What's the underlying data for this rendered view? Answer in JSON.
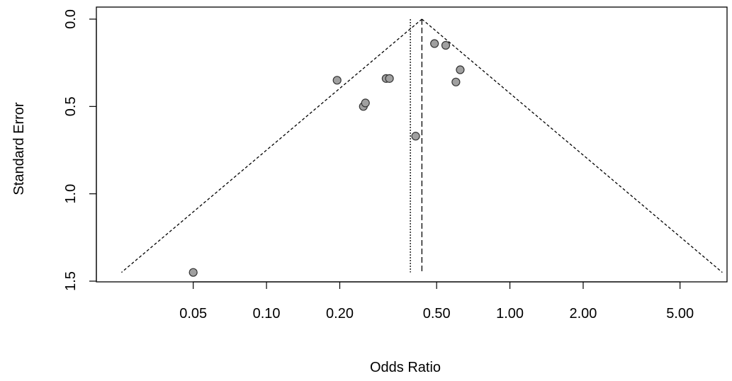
{
  "chart_data": {
    "type": "scatter",
    "title": "",
    "xlabel": "Odds Ratio",
    "ylabel": "Standard Error",
    "x_scale": "log",
    "y_reversed": true,
    "xlim": [
      0.02,
      7.8
    ],
    "ylim": [
      0.0,
      1.5
    ],
    "x_ticks": [
      {
        "value": 0.05,
        "label": "0.05"
      },
      {
        "value": 0.1,
        "label": "0.10"
      },
      {
        "value": 0.2,
        "label": "0.20"
      },
      {
        "value": 0.5,
        "label": "0.50"
      },
      {
        "value": 1.0,
        "label": "1.00"
      },
      {
        "value": 2.0,
        "label": "2.00"
      },
      {
        "value": 5.0,
        "label": "5.00"
      }
    ],
    "y_ticks": [
      {
        "value": 0.0,
        "label": "0.0"
      },
      {
        "value": 0.5,
        "label": "0.5"
      },
      {
        "value": 1.0,
        "label": "1.0"
      },
      {
        "value": 1.5,
        "label": "1.5"
      }
    ],
    "grid": false,
    "legend": "none",
    "points": [
      {
        "x": 0.05,
        "y": 1.45
      },
      {
        "x": 0.195,
        "y": 0.35
      },
      {
        "x": 0.25,
        "y": 0.5
      },
      {
        "x": 0.255,
        "y": 0.48
      },
      {
        "x": 0.31,
        "y": 0.34
      },
      {
        "x": 0.32,
        "y": 0.34
      },
      {
        "x": 0.41,
        "y": 0.67
      },
      {
        "x": 0.49,
        "y": 0.14
      },
      {
        "x": 0.545,
        "y": 0.15
      },
      {
        "x": 0.6,
        "y": 0.36
      },
      {
        "x": 0.625,
        "y": 0.29
      }
    ],
    "pooled_estimate": 0.435,
    "fixed_estimate": 0.39,
    "funnel_max_se": 1.45,
    "colors": {
      "point_fill": "#a0a0a0",
      "point_stroke": "#333333",
      "lines": "#000000"
    }
  }
}
